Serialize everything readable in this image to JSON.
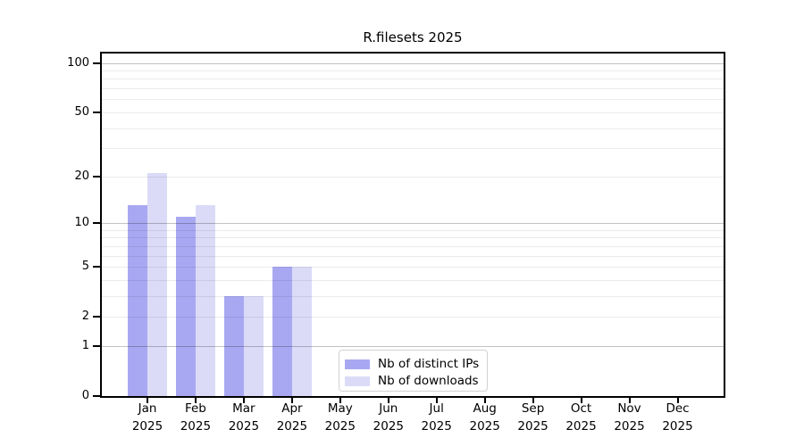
{
  "chart_data": {
    "type": "bar",
    "title": "R.filesets 2025",
    "categories": [
      "Jan 2025",
      "Feb 2025",
      "Mar 2025",
      "Apr 2025",
      "May 2025",
      "Jun 2025",
      "Jul 2025",
      "Aug 2025",
      "Sep 2025",
      "Oct 2025",
      "Nov 2025",
      "Dec 2025"
    ],
    "series": [
      {
        "name": "Nb of distinct IPs",
        "color": "#a8a8f2",
        "values": [
          13,
          11,
          3,
          5,
          0,
          0,
          0,
          0,
          0,
          0,
          0,
          0
        ]
      },
      {
        "name": "Nb of downloads",
        "color": "#dbdbf8",
        "values": [
          21,
          13,
          3,
          5,
          0,
          0,
          0,
          0,
          0,
          0,
          0,
          0
        ]
      }
    ],
    "xlabel": "",
    "ylabel": "",
    "yscale": "log(1+y)",
    "ylim": [
      0,
      114
    ],
    "yticks": [
      0,
      1,
      2,
      5,
      10,
      20,
      50,
      100
    ],
    "major_gridlines": [
      1,
      10,
      100
    ],
    "minor_gridlines": [
      2,
      3,
      4,
      5,
      6,
      7,
      8,
      9,
      20,
      30,
      40,
      50,
      60,
      70,
      80,
      90
    ],
    "grid": true,
    "legend_position": "lower center"
  },
  "style": {
    "bar_color_dark": "#a8a8f2",
    "bar_color_light": "#dbdbf8",
    "major_grid_color": "rgba(0,0,0,0.24)",
    "minor_grid_color": "rgba(0,0,0,0.08)",
    "axis_color": "#000000",
    "legend_border_color": "#d2d2d2",
    "background": "#ffffff"
  }
}
